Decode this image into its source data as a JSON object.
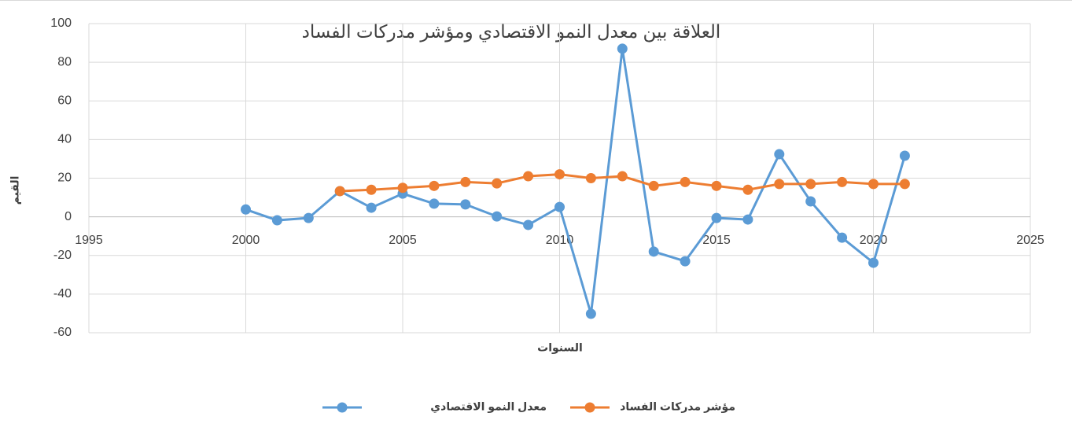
{
  "chart_data": {
    "type": "line",
    "title": "العلاقة بين معدل النمو الاقتصادي ومؤشر مدركات الفساد",
    "x_label": "السنوات",
    "y_label": "القيم",
    "x": [
      2000,
      2001,
      2002,
      2003,
      2004,
      2005,
      2006,
      2007,
      2008,
      2009,
      2010,
      2011,
      2012,
      2013,
      2014,
      2015,
      2016,
      2017,
      2018,
      2019,
      2020,
      2021
    ],
    "series": [
      {
        "name": "معدل النمو الاقتصادي",
        "color": "#5b9bd5",
        "values": [
          3.8,
          -1.8,
          -0.6,
          13.3,
          4.7,
          12,
          6.8,
          6.4,
          0.2,
          -4.2,
          5.1,
          -50.2,
          87,
          -18,
          -23,
          -0.6,
          -1.4,
          32.4,
          8,
          -10.8,
          -23.8,
          31.6
        ]
      },
      {
        "name": "مؤشر مدركات الفساد",
        "color": "#ed7d31",
        "values": [
          null,
          null,
          null,
          13.3,
          14,
          15,
          16,
          18,
          17.3,
          21,
          22,
          20,
          21,
          16,
          18,
          16,
          14,
          17,
          17,
          18,
          17,
          17
        ]
      }
    ],
    "xlim": [
      1995,
      2025
    ],
    "xticks": [
      1995,
      2000,
      2005,
      2010,
      2015,
      2020,
      2025
    ],
    "ylim": [
      -60,
      100
    ],
    "yticks": [
      -60,
      -40,
      -20,
      0,
      20,
      40,
      60,
      80,
      100
    ],
    "grid": true,
    "legend": "bottom"
  }
}
